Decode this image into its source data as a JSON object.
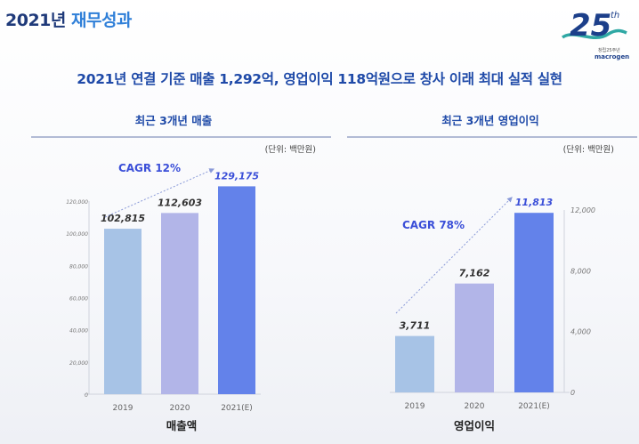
{
  "page": {
    "title_prefix": "2021년 ",
    "title_accent": "재무성과",
    "headline": "2021년 연결 기준 매출 1,292억, 영업이익 118억원으로 창사 이래 최대 실적 실현"
  },
  "logo": {
    "number": "25",
    "suffix": "th",
    "tagline": "창립25주년",
    "brand": "macrogen"
  },
  "colors": {
    "bar_2019": "#a7c3e6",
    "bar_2020": "#b2b5e8",
    "bar_2021": "#6382ea",
    "title": "#1f3a7a",
    "accent": "#2f7fd8",
    "headline": "#1f4aa8",
    "cagr": "#3b4fd8"
  },
  "chart_data": [
    {
      "type": "bar",
      "title": "최근 3개년 매출",
      "unit_note": "(단위: 백만원)",
      "xlabel": "매출액",
      "categories": [
        "2019",
        "2020",
        "2021(E)"
      ],
      "values": [
        102815,
        112603,
        129175
      ],
      "value_labels": [
        "102,815",
        "112,603",
        "129,175"
      ],
      "ylim": [
        0,
        120000
      ],
      "y_ticks": [
        0,
        20000,
        40000,
        60000,
        80000,
        100000,
        120000
      ],
      "y_tick_labels": [
        "0",
        "20,000",
        "40,000",
        "60,000",
        "80,000",
        "100,000",
        "120,000"
      ],
      "y_axis_side": "left",
      "annotation": "CAGR 12%"
    },
    {
      "type": "bar",
      "title": "최근 3개년 영업이익",
      "unit_note": "(단위: 백만원)",
      "xlabel": "영업이익",
      "categories": [
        "2019",
        "2020",
        "2021(E)"
      ],
      "values": [
        3711,
        7162,
        11813
      ],
      "value_labels": [
        "3,711",
        "7,162",
        "11,813"
      ],
      "ylim": [
        0,
        12000
      ],
      "y_ticks": [
        0,
        4000,
        8000,
        12000
      ],
      "y_tick_labels": [
        "0",
        "4,000",
        "8,000",
        "12,000"
      ],
      "y_axis_side": "right",
      "annotation": "CAGR 78%"
    }
  ]
}
